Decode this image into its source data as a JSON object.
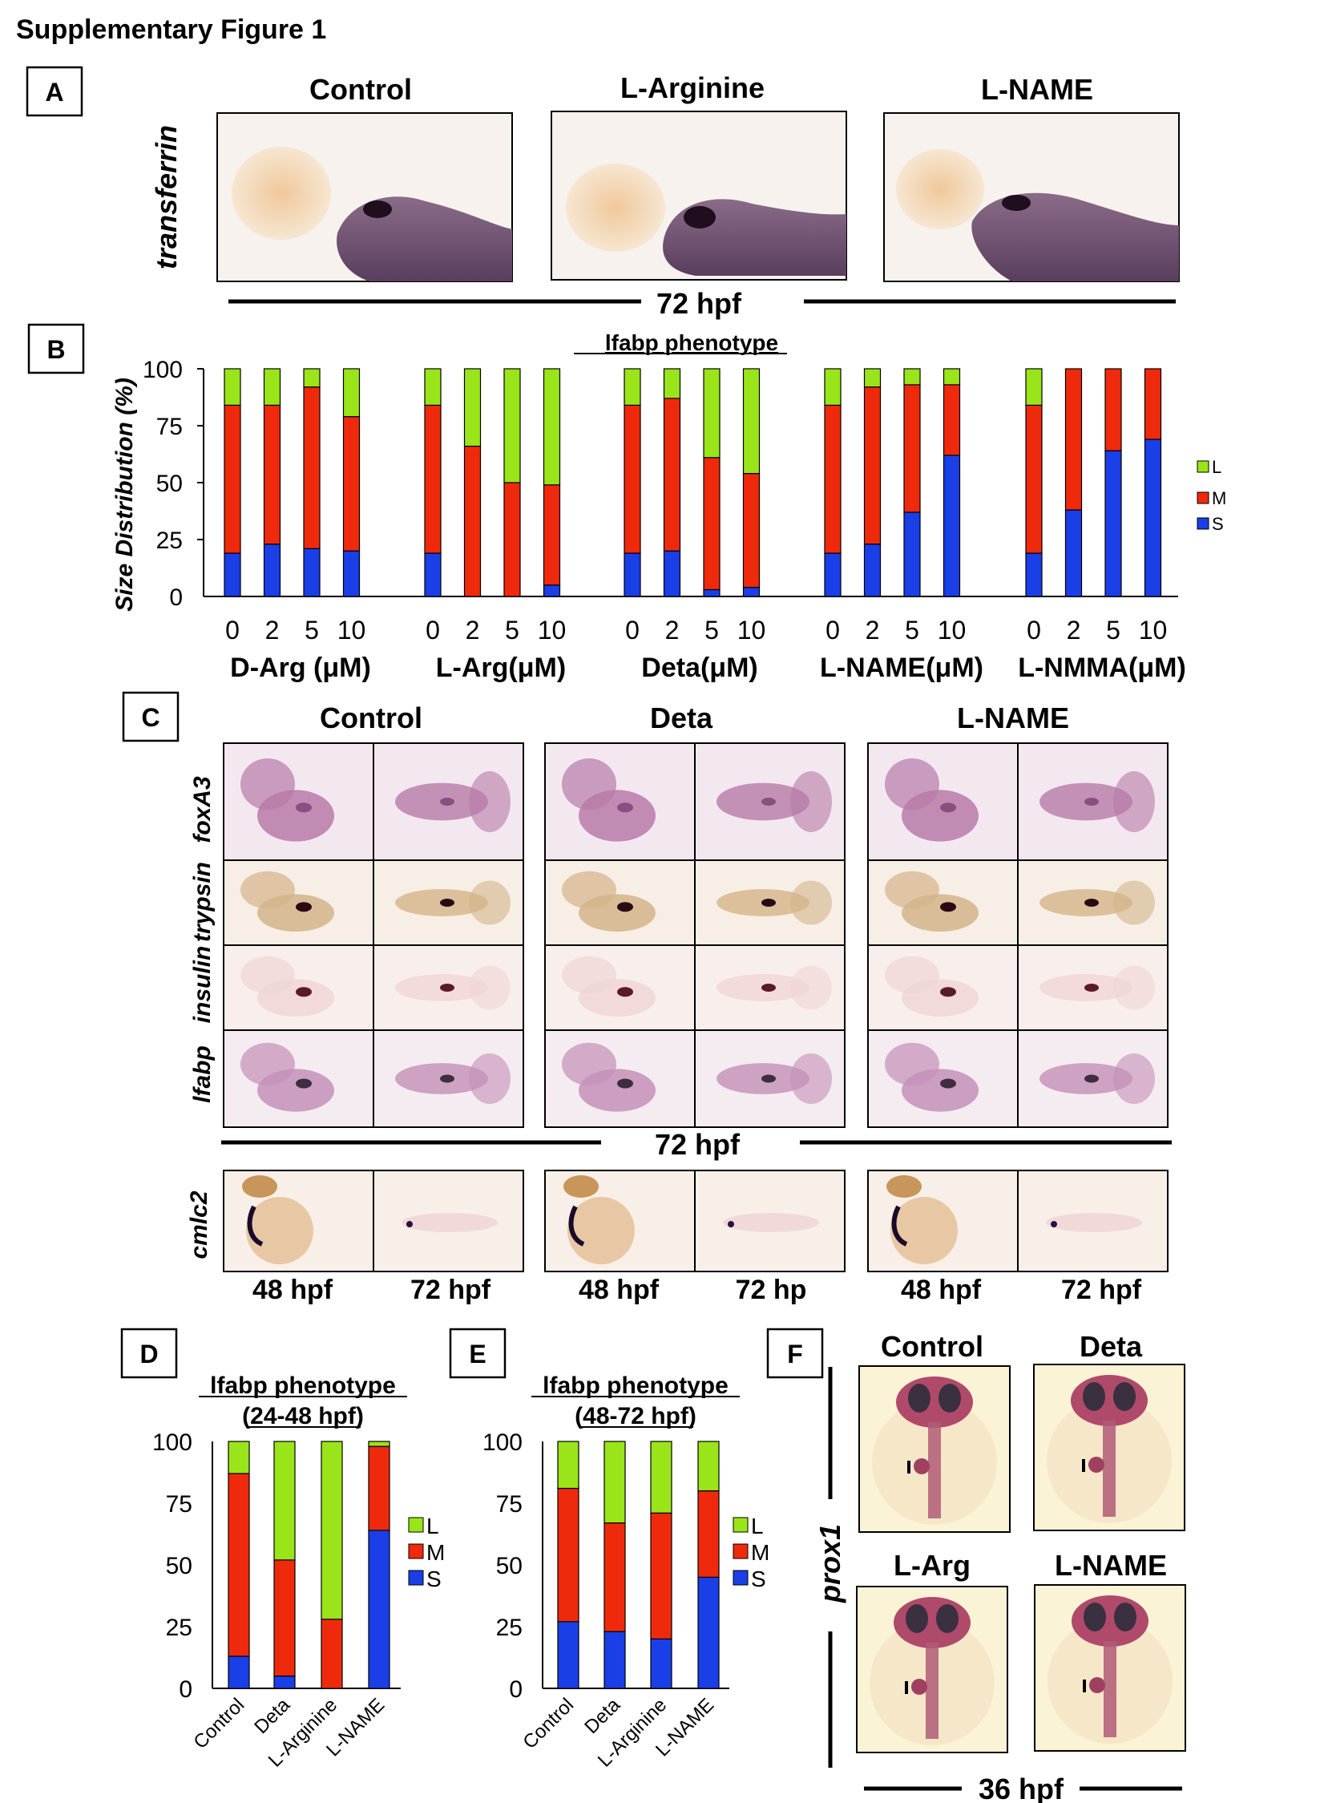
{
  "figure_title": "Supplementary Figure 1",
  "colors": {
    "L": "#99e51a",
    "M": "#ef2a0c",
    "S": "#1a3fe6",
    "frame": "#000000"
  },
  "panelA": {
    "letter": "A",
    "conditions": [
      "Control",
      "L-Arginine",
      "L-NAME"
    ],
    "gene": "transferrin",
    "timepoint": "72 hpf"
  },
  "panelB": {
    "letter": "B",
    "title": "lfabp phenotype",
    "ylabel": "Size Distribution (%)",
    "yticks": [
      "100",
      "75",
      "50",
      "25",
      "0"
    ],
    "legend": [
      "L",
      "M",
      "S"
    ],
    "dose_labels": [
      "0",
      "2",
      "5",
      "10"
    ],
    "groups": [
      "D-Arg (μM)",
      "L-Arg(μM)",
      "Deta(μM)",
      "L-NAME(μM)",
      "L-NMMA(μM)"
    ]
  },
  "panelC": {
    "letter": "C",
    "conditions": [
      "Control",
      "Deta",
      "L-NAME"
    ],
    "genes": [
      "foxA3",
      "trypsin",
      "insulin",
      "lfabp"
    ],
    "timepoint": "72 hpf",
    "cmlc2_gene": "cmlc2",
    "cmlc2_times": [
      "48 hpf",
      "72 hpf",
      "48 hpf",
      "72 hp",
      "48 hpf",
      "72 hpf"
    ]
  },
  "panelD": {
    "letter": "D",
    "title_line1": "lfabp phenotype",
    "title_line2": "(24-48 hpf)",
    "yticks": [
      "100",
      "75",
      "50",
      "25",
      "0"
    ],
    "legend": [
      "L",
      "M",
      "S"
    ]
  },
  "panelE": {
    "letter": "E",
    "title_line1": "lfabp phenotype",
    "title_line2": "(48-72 hpf)",
    "yticks": [
      "100",
      "75",
      "50",
      "25",
      "0"
    ],
    "legend": [
      "L",
      "M",
      "S"
    ]
  },
  "panelF": {
    "letter": "F",
    "conditions": [
      "Control",
      "Deta",
      "L-Arg",
      "L-NAME"
    ],
    "gene": "prox1",
    "timepoint": "36 hpf"
  },
  "chart_data": [
    {
      "type": "bar",
      "stacked": true,
      "title": "lfabp phenotype",
      "ylabel": "Size Distribution (%)",
      "ylim": [
        0,
        100
      ],
      "groups": [
        {
          "name": "D-Arg (μM)",
          "categories": [
            "0",
            "2",
            "5",
            "10"
          ],
          "S": [
            19,
            23,
            21,
            20
          ],
          "M": [
            65,
            61,
            71,
            59
          ],
          "L": [
            16,
            16,
            8,
            21
          ]
        },
        {
          "name": "L-Arg(μM)",
          "categories": [
            "0",
            "2",
            "5",
            "10"
          ],
          "S": [
            19,
            0,
            0,
            5
          ],
          "M": [
            65,
            66,
            50,
            44
          ],
          "L": [
            16,
            34,
            50,
            51
          ]
        },
        {
          "name": "Deta(μM)",
          "categories": [
            "0",
            "2",
            "5",
            "10"
          ],
          "S": [
            19,
            20,
            3,
            4
          ],
          "M": [
            65,
            67,
            58,
            50
          ],
          "L": [
            16,
            13,
            39,
            46
          ]
        },
        {
          "name": "L-NAME(μM)",
          "categories": [
            "0",
            "2",
            "5",
            "10"
          ],
          "S": [
            19,
            23,
            37,
            62
          ],
          "M": [
            65,
            69,
            56,
            31
          ],
          "L": [
            16,
            8,
            7,
            7
          ]
        },
        {
          "name": "L-NMMA(μM)",
          "categories": [
            "0",
            "2",
            "5",
            "10"
          ],
          "S": [
            19,
            38,
            64,
            69
          ],
          "M": [
            65,
            62,
            36,
            31
          ],
          "L": [
            16,
            0,
            0,
            0
          ]
        }
      ],
      "legend": [
        "L",
        "M",
        "S"
      ]
    },
    {
      "type": "bar",
      "stacked": true,
      "title": "lfabp phenotype (24-48 hpf)",
      "ylim": [
        0,
        100
      ],
      "categories": [
        "Control",
        "Deta",
        "L-Arginine",
        "L-NAME"
      ],
      "series": [
        {
          "name": "S",
          "values": [
            13,
            5,
            0,
            64
          ]
        },
        {
          "name": "M",
          "values": [
            74,
            47,
            28,
            34
          ]
        },
        {
          "name": "L",
          "values": [
            13,
            48,
            72,
            2
          ]
        }
      ]
    },
    {
      "type": "bar",
      "stacked": true,
      "title": "lfabp phenotype (48-72 hpf)",
      "ylim": [
        0,
        100
      ],
      "categories": [
        "Control",
        "Deta",
        "L-Arginine",
        "L-NAME"
      ],
      "series": [
        {
          "name": "S",
          "values": [
            27,
            23,
            20,
            45
          ]
        },
        {
          "name": "M",
          "values": [
            54,
            44,
            51,
            35
          ]
        },
        {
          "name": "L",
          "values": [
            19,
            33,
            29,
            20
          ]
        }
      ]
    }
  ]
}
